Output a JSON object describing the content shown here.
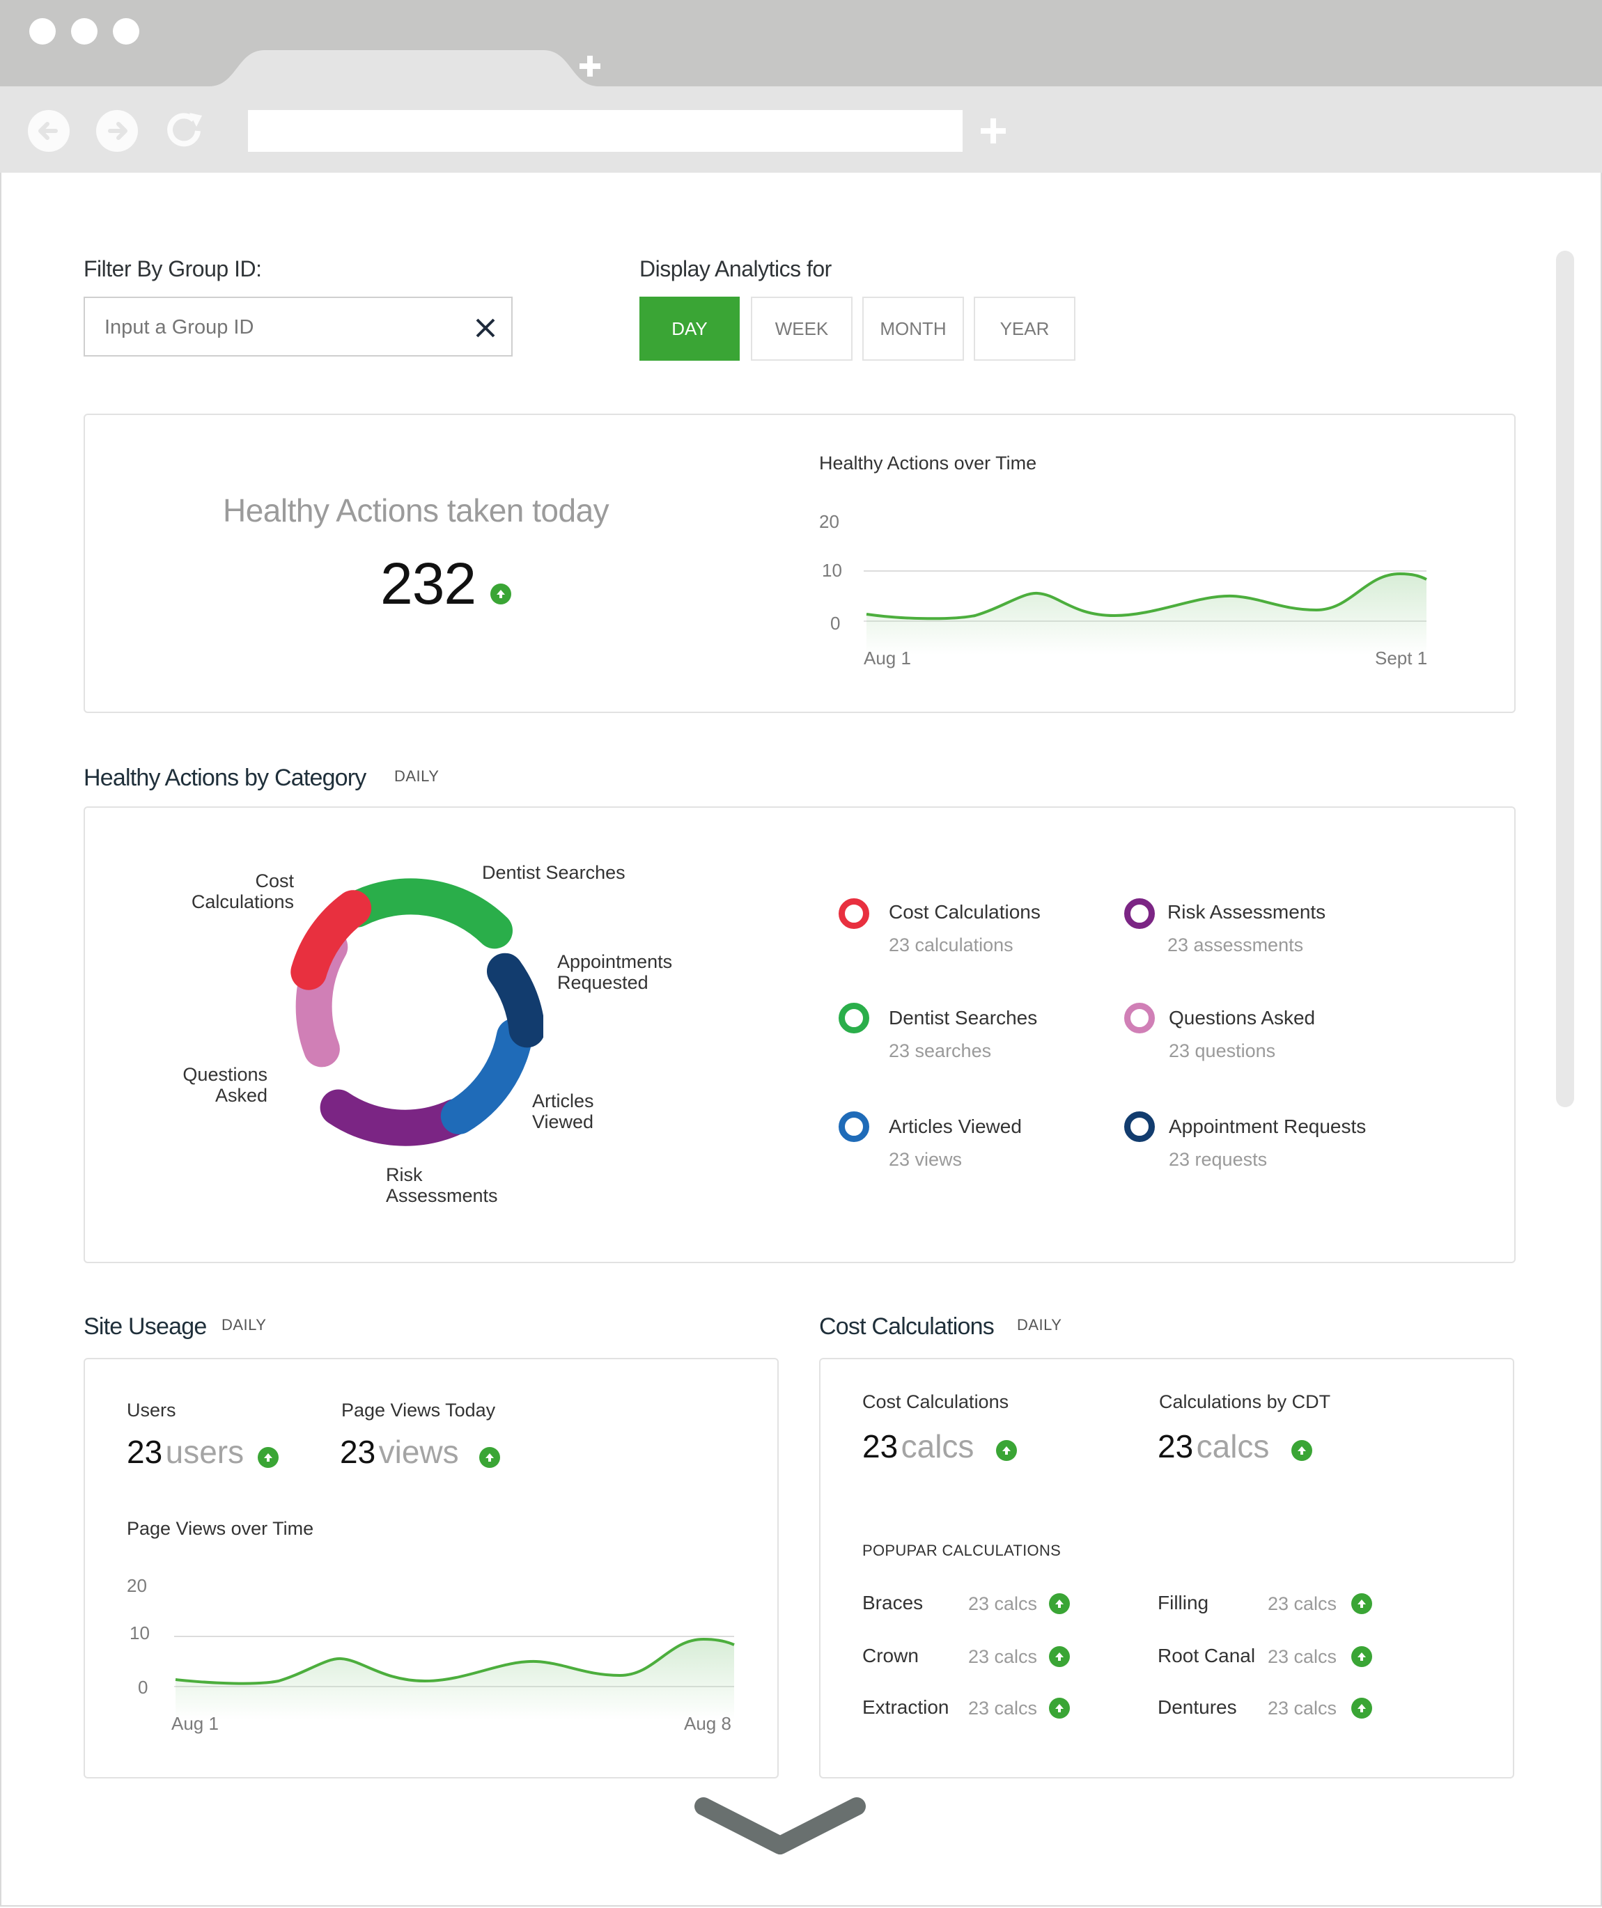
{
  "filter": {
    "label": "Filter By Group ID:",
    "placeholder": "Input a Group ID"
  },
  "display": {
    "label": "Display Analytics for",
    "periods": [
      "DAY",
      "WEEK",
      "MONTH",
      "YEAR"
    ],
    "selected": "DAY",
    "accent": "#3aa535"
  },
  "healthy_today": {
    "title": "Healthy Actions taken today",
    "value": "232"
  },
  "healthy_over_time": {
    "title": "Healthy Actions  over Time",
    "y_ticks": [
      "20",
      "10",
      "0"
    ],
    "x_start": "Aug 1",
    "x_end": "Sept 1"
  },
  "category_section": {
    "title": "Healthy Actions by Category",
    "tag": "DAILY",
    "donut_labels": {
      "cost": "Cost\nCalculations",
      "dentist": "Dentist Searches",
      "appointments": "Appointments\nRequested",
      "articles": "Articles\nViewed",
      "risk": "Risk\nAssessments",
      "questions": "Questions\nAsked"
    },
    "legend": [
      {
        "title": "Cost Calculations",
        "sub": "23 calculations",
        "color": "#e8303f"
      },
      {
        "title": "Risk Assessments",
        "sub": "23 assessments",
        "color": "#7b2584"
      },
      {
        "title": "Dentist Searches",
        "sub": "23 searches",
        "color": "#2aae4a"
      },
      {
        "title": "Questions Asked",
        "sub": "23 questions",
        "color": "#d07fb6"
      },
      {
        "title": "Articles Viewed",
        "sub": "23 views",
        "color": "#1f6bb8"
      },
      {
        "title": "Appointment Requests",
        "sub": "23 requests",
        "color": "#123c6e"
      }
    ]
  },
  "site_usage": {
    "title": "Site Useage",
    "tag": "DAILY",
    "users_label": "Users",
    "users_num": "23",
    "users_unit": "users",
    "views_label": "Page Views Today",
    "views_num": "23",
    "views_unit": "views",
    "chart_title": "Page Views over Time",
    "y_ticks": [
      "20",
      "10",
      "0"
    ],
    "x_start": "Aug 1",
    "x_end": "Aug 8"
  },
  "cost_calc": {
    "title": "Cost Calculations",
    "tag": "DAILY",
    "stat1_label": "Cost Calculations",
    "stat1_num": "23",
    "stat1_unit": "calcs",
    "stat2_label": "Calculations by CDT",
    "stat2_num": "23",
    "stat2_unit": "calcs",
    "popular_label": "POPUPAR CALCULATIONS",
    "popular": [
      {
        "name": "Braces",
        "value": "23 calcs"
      },
      {
        "name": "Filling",
        "value": "23 calcs"
      },
      {
        "name": "Crown",
        "value": "23 calcs"
      },
      {
        "name": "Root Canal",
        "value": "23 calcs"
      },
      {
        "name": "Extraction",
        "value": "23 calcs"
      },
      {
        "name": "Dentures",
        "value": "23 calcs"
      }
    ]
  }
}
